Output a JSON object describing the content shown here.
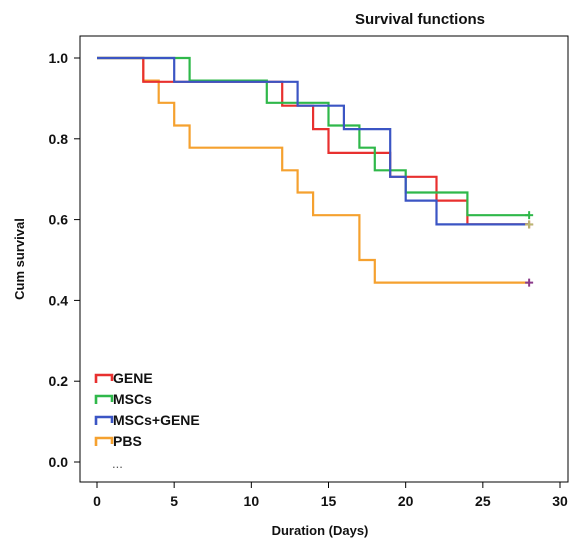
{
  "chart_data": {
    "type": "line",
    "step": true,
    "title": "Survival functions",
    "xlabel": "Duration (Days)",
    "ylabel": "Cum survival",
    "xlim": [
      0,
      30
    ],
    "ylim": [
      0.0,
      1.0
    ],
    "xticks": [
      0,
      5,
      10,
      15,
      20,
      25,
      30
    ],
    "yticks": [
      0.0,
      0.2,
      0.4,
      0.6,
      0.8,
      1.0
    ],
    "xtick_labels": [
      "0",
      "5",
      "10",
      "15",
      "20",
      "25",
      "30"
    ],
    "ytick_labels": [
      "0.0",
      "0.2",
      "0.4",
      "0.6",
      "0.8",
      "1.0"
    ],
    "legend_position": "bottom-left",
    "legend_more": "...",
    "series": [
      {
        "name": "GENE",
        "color": "#e8302f",
        "censor_color": "#e8302f",
        "points": [
          [
            0,
            1.0
          ],
          [
            3,
            1.0
          ],
          [
            3,
            0.941
          ],
          [
            12,
            0.941
          ],
          [
            12,
            0.882
          ],
          [
            14,
            0.882
          ],
          [
            14,
            0.824
          ],
          [
            15,
            0.824
          ],
          [
            15,
            0.765
          ],
          [
            19,
            0.765
          ],
          [
            19,
            0.706
          ],
          [
            22,
            0.706
          ],
          [
            22,
            0.647
          ],
          [
            24,
            0.647
          ],
          [
            24,
            0.588
          ],
          [
            28,
            0.588
          ]
        ],
        "censored": [
          [
            28,
            0.588
          ]
        ]
      },
      {
        "name": "MSCs",
        "color": "#2fb84a",
        "censor_color": "#2fb84a",
        "points": [
          [
            0,
            1.0
          ],
          [
            6,
            1.0
          ],
          [
            6,
            0.944
          ],
          [
            11,
            0.944
          ],
          [
            11,
            0.889
          ],
          [
            15,
            0.889
          ],
          [
            15,
            0.833
          ],
          [
            17,
            0.833
          ],
          [
            17,
            0.778
          ],
          [
            18,
            0.778
          ],
          [
            18,
            0.722
          ],
          [
            20,
            0.722
          ],
          [
            20,
            0.667
          ],
          [
            24,
            0.667
          ],
          [
            24,
            0.611
          ],
          [
            28,
            0.611
          ]
        ],
        "censored": [
          [
            28,
            0.611
          ]
        ]
      },
      {
        "name": "MSCs+GENE",
        "color": "#3b55c4",
        "censor_color": "#b8b873",
        "points": [
          [
            0,
            1.0
          ],
          [
            5,
            1.0
          ],
          [
            5,
            0.941
          ],
          [
            13,
            0.941
          ],
          [
            13,
            0.882
          ],
          [
            16,
            0.882
          ],
          [
            16,
            0.824
          ],
          [
            19,
            0.824
          ],
          [
            19,
            0.706
          ],
          [
            20,
            0.706
          ],
          [
            20,
            0.647
          ],
          [
            22,
            0.647
          ],
          [
            22,
            0.588
          ],
          [
            28,
            0.588
          ]
        ],
        "censored": [
          [
            28,
            0.588
          ]
        ]
      },
      {
        "name": "PBS",
        "color": "#f5a12f",
        "censor_color": "#8a3a8a",
        "points": [
          [
            0,
            1.0
          ],
          [
            3,
            1.0
          ],
          [
            3,
            0.944
          ],
          [
            4,
            0.944
          ],
          [
            4,
            0.889
          ],
          [
            5,
            0.889
          ],
          [
            5,
            0.833
          ],
          [
            6,
            0.833
          ],
          [
            6,
            0.778
          ],
          [
            12,
            0.778
          ],
          [
            12,
            0.722
          ],
          [
            13,
            0.722
          ],
          [
            13,
            0.667
          ],
          [
            14,
            0.667
          ],
          [
            14,
            0.611
          ],
          [
            17,
            0.611
          ],
          [
            17,
            0.5
          ],
          [
            18,
            0.5
          ],
          [
            18,
            0.444
          ],
          [
            28,
            0.444
          ]
        ],
        "censored": [
          [
            28,
            0.444
          ]
        ]
      }
    ]
  }
}
